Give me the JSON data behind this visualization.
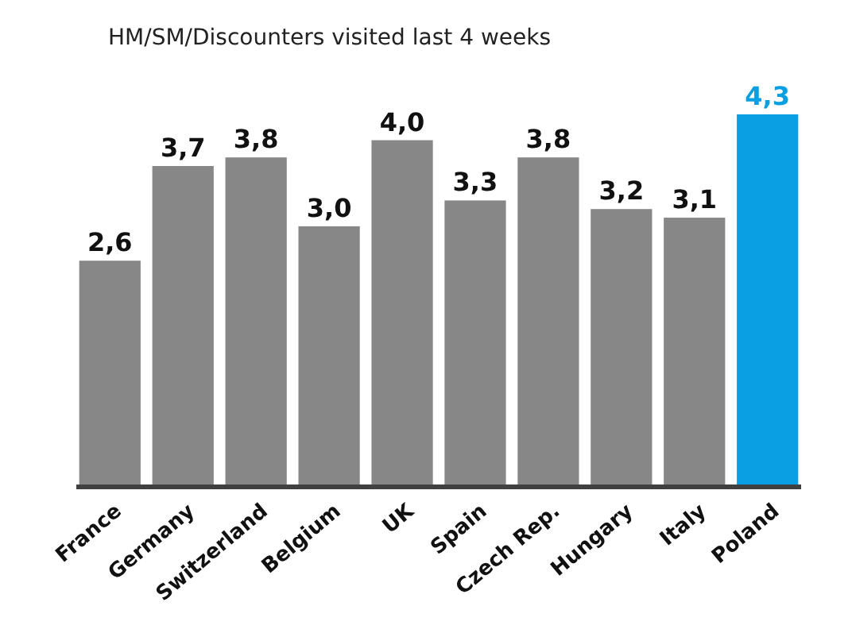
{
  "chart_data": {
    "type": "bar",
    "title": "HM/SM/Discounters visited last 4 weeks",
    "categories": [
      "France",
      "Germany",
      "Switzerland",
      "Belgium",
      "UK",
      "Spain",
      "Czech Rep.",
      "Hungary",
      "Italy",
      "Poland"
    ],
    "values": [
      2.6,
      3.7,
      3.8,
      3.0,
      4.0,
      3.3,
      3.8,
      3.2,
      3.1,
      4.3
    ],
    "colors": [
      "#878787",
      "#878787",
      "#878787",
      "#878787",
      "#878787",
      "#878787",
      "#878787",
      "#878787",
      "#878787",
      "#0a9fe0"
    ],
    "value_labels": [
      "2,6",
      "3,7",
      "3,8",
      "3,0",
      "4,0",
      "3,3",
      "3,8",
      "3,2",
      "3,1",
      "4,3"
    ]
  }
}
